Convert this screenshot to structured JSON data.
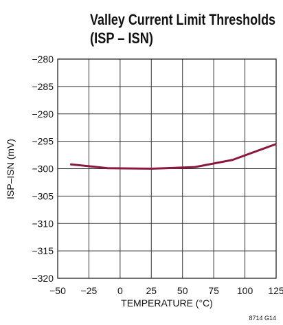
{
  "chart_data": {
    "type": "line",
    "title": [
      "Valley Current Limit Thresholds",
      "(ISP – ISN)"
    ],
    "x_label": "TEMPERATURE (°C)",
    "y_label": "ISP–ISN (mV)",
    "annotation": "8714 G14",
    "x": [
      -40,
      -10,
      25,
      60,
      90,
      125
    ],
    "series": [
      {
        "name": "ISP–ISN",
        "color": "#8b1a3a",
        "values": [
          -299.2,
          -299.9,
          -300.0,
          -299.7,
          -298.4,
          -295.5
        ]
      }
    ],
    "xlim": [
      -50,
      125
    ],
    "xticks": [
      {
        "value": -50,
        "label": "−50"
      },
      {
        "value": -25,
        "label": "−25"
      },
      0,
      25,
      50,
      75,
      100,
      125
    ],
    "ylim": [
      -320,
      -280
    ],
    "yticks": [
      {
        "value": -280,
        "label": "−280"
      },
      {
        "value": -285,
        "label": "−285"
      },
      {
        "value": -290,
        "label": "−290"
      },
      {
        "value": -295,
        "label": "−295"
      },
      {
        "value": -300,
        "label": "−300"
      },
      {
        "value": -305,
        "label": "−305"
      },
      {
        "value": -310,
        "label": "−310"
      },
      {
        "value": -315,
        "label": "−315"
      },
      {
        "value": -320,
        "label": "−320"
      }
    ],
    "grid": true
  }
}
